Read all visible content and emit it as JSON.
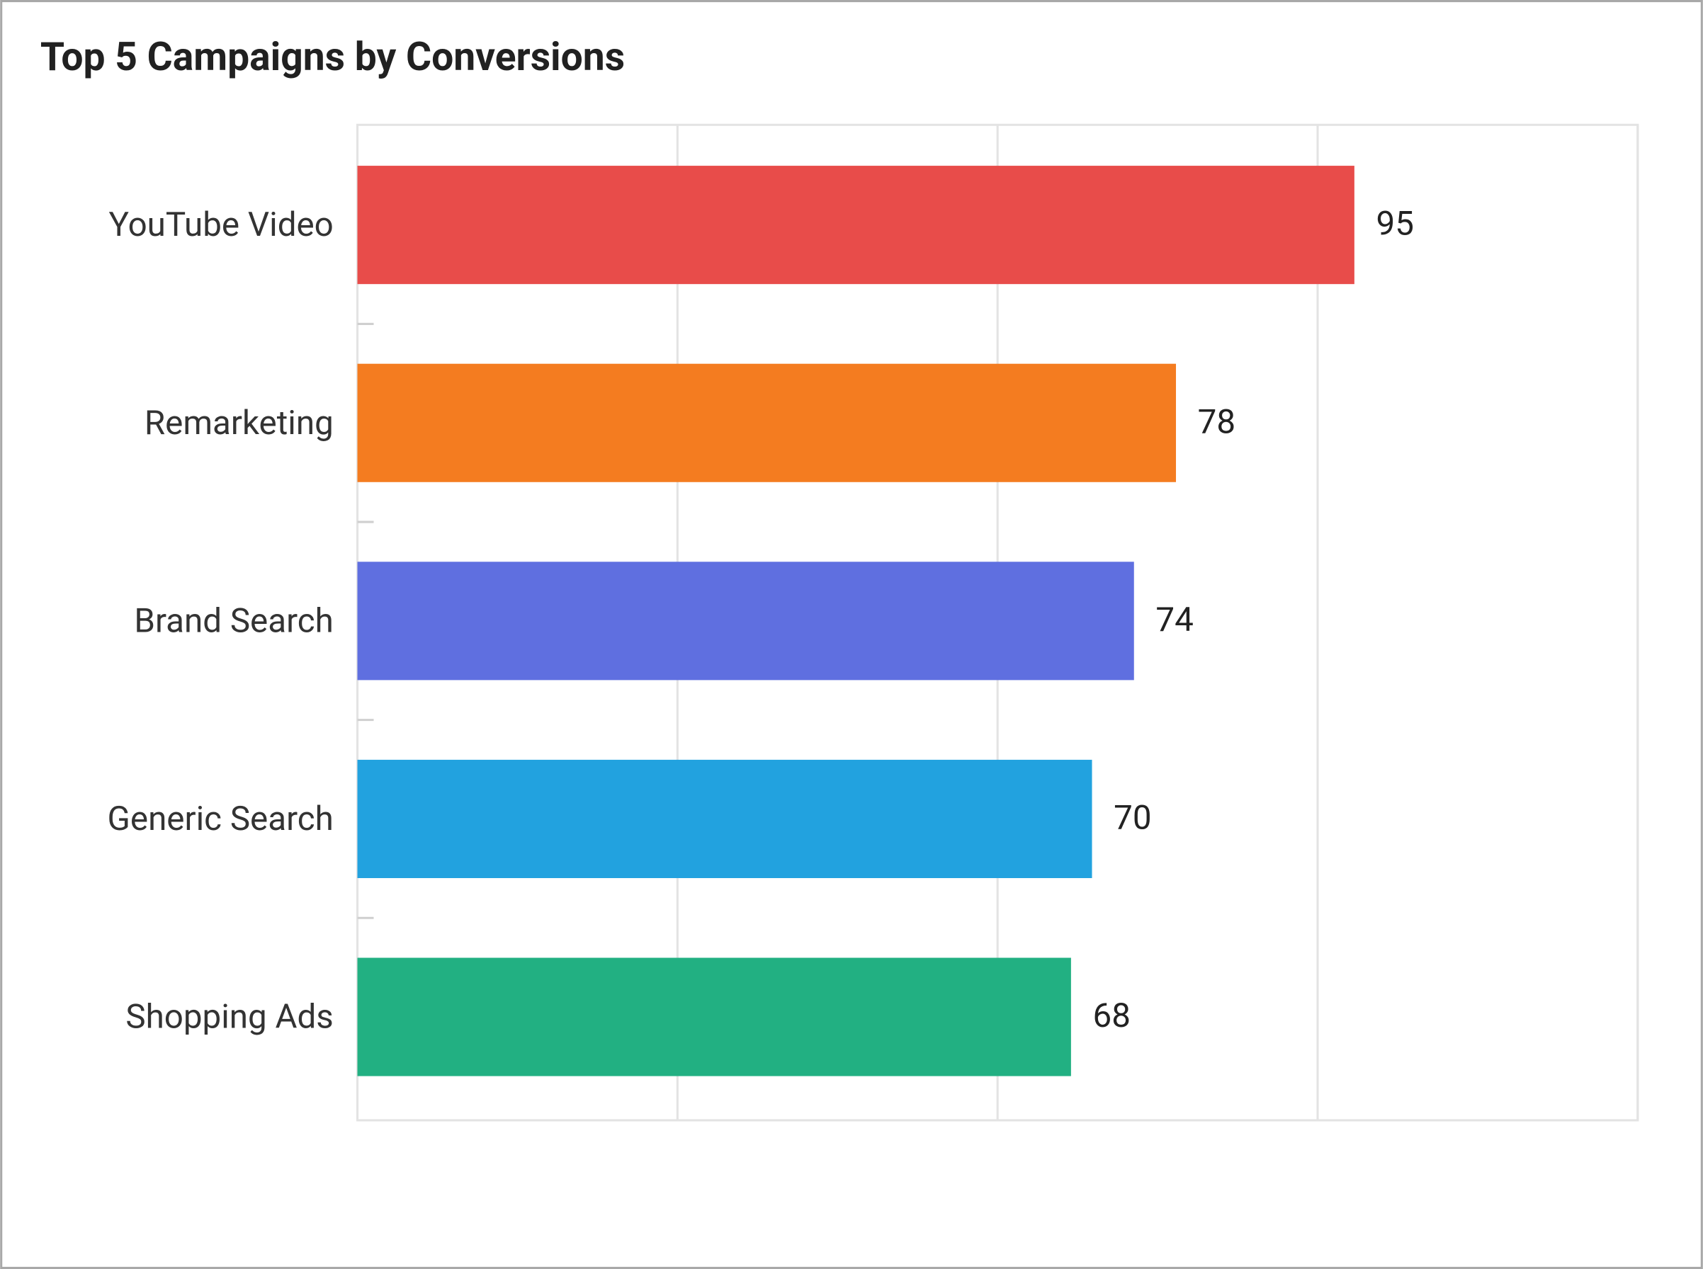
{
  "chart_data": {
    "type": "bar",
    "orientation": "horizontal",
    "title": "Top 5 Campaigns by Conversions",
    "categories": [
      "YouTube Video",
      "Remarketing",
      "Brand Search",
      "Generic Search",
      "Shopping Ads"
    ],
    "values": [
      95,
      78,
      74,
      70,
      68
    ],
    "colors": [
      "#e84c4a",
      "#f47c20",
      "#5f6fe0",
      "#22a2df",
      "#22b082"
    ],
    "xlim": [
      0,
      122
    ],
    "xticks": [
      0,
      30.5,
      61,
      91.5,
      122
    ],
    "grid": true
  }
}
